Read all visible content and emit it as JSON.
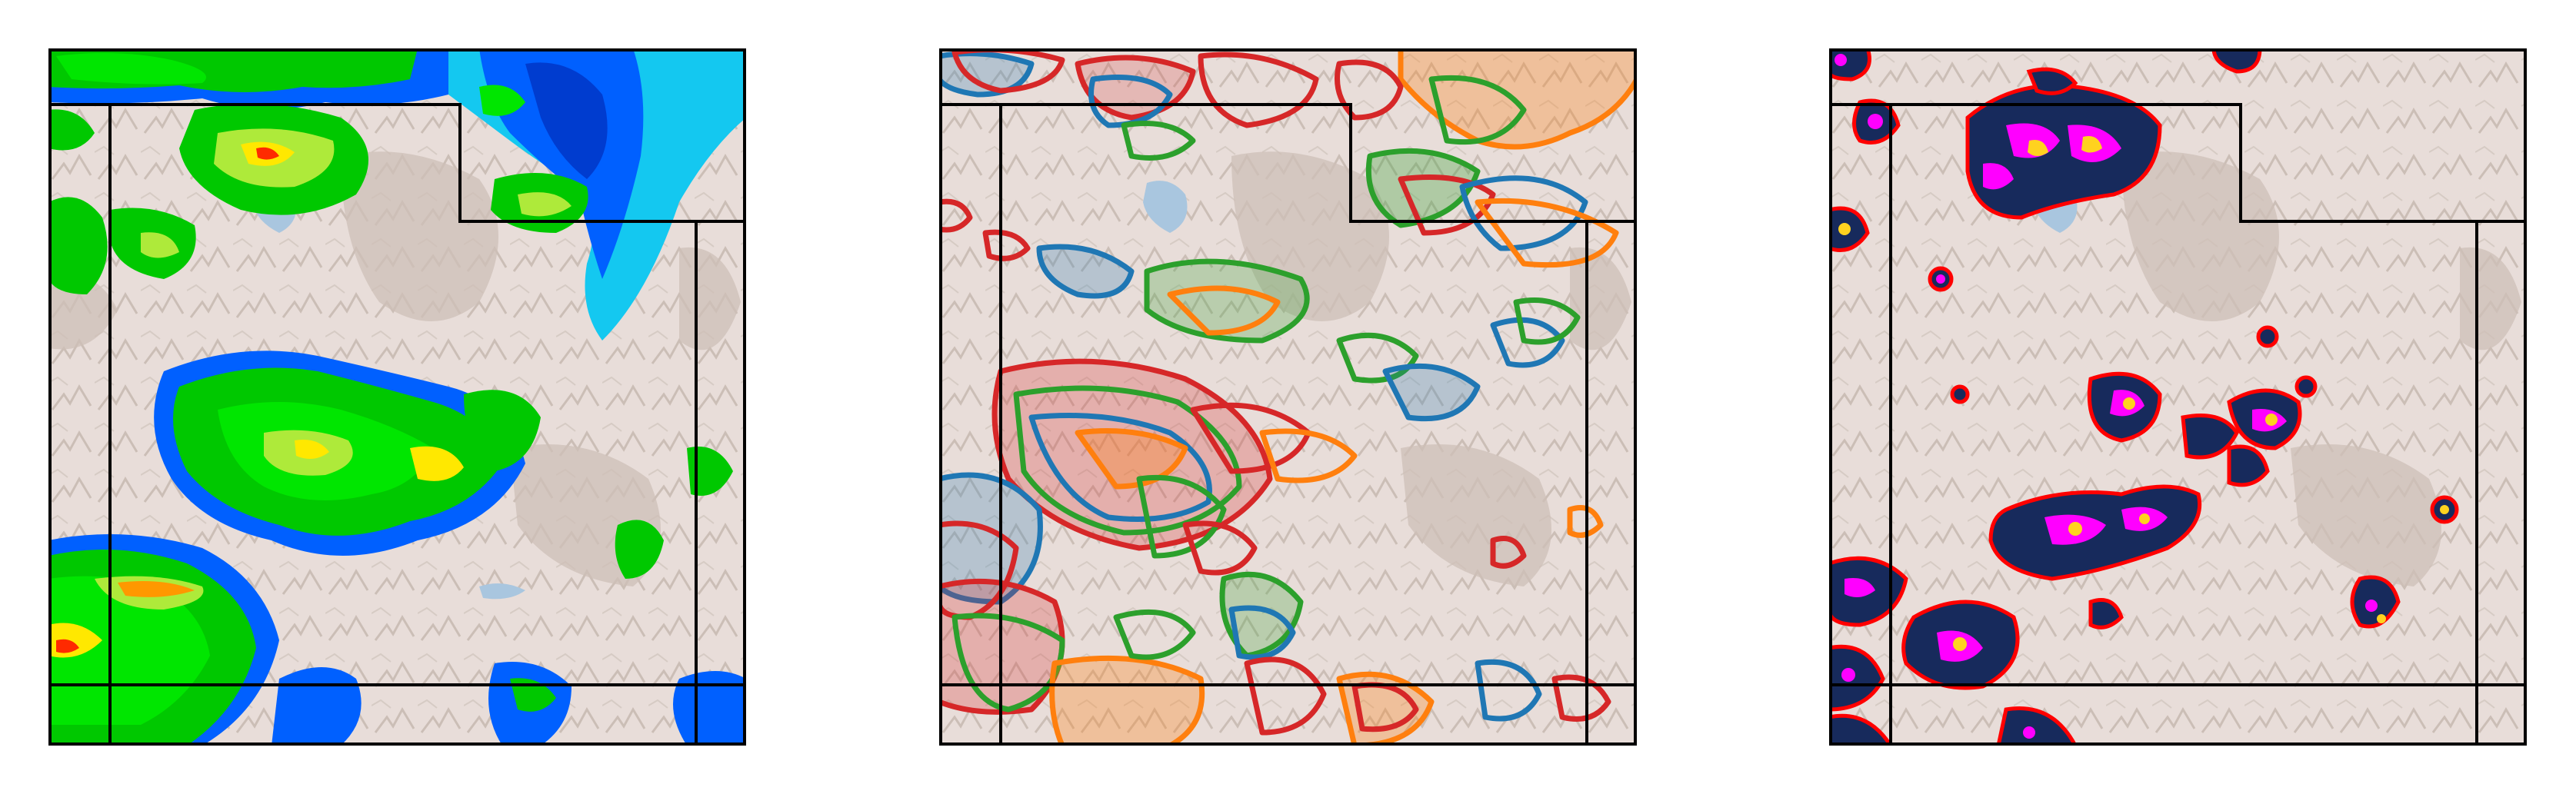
{
  "figure": {
    "panels": [
      {
        "id": "panel-1",
        "content": "precipitation-field-map"
      },
      {
        "id": "panel-2",
        "content": "ensemble-contour-overlay-map"
      },
      {
        "id": "panel-3",
        "content": "probability-cells-map"
      }
    ]
  },
  "colors": {
    "terrain_base": "#e8ddd9",
    "terrain_shade": "#cfc2bb",
    "lake": "#a9c6df",
    "frame": "#000000",
    "precip_levels": [
      "#14c8f0",
      "#0060ff",
      "#003ccf",
      "#00c800",
      "#00e600",
      "#aeea3a",
      "#ffe800",
      "#ff9800",
      "#ff2a00"
    ],
    "ensemble_members": [
      "#1f77b4",
      "#ff7f0e",
      "#2ca02c",
      "#d62728"
    ],
    "cell_scale": [
      "#172a5c",
      "#ff0000",
      "#ff00ff",
      "#ffd21f"
    ]
  }
}
